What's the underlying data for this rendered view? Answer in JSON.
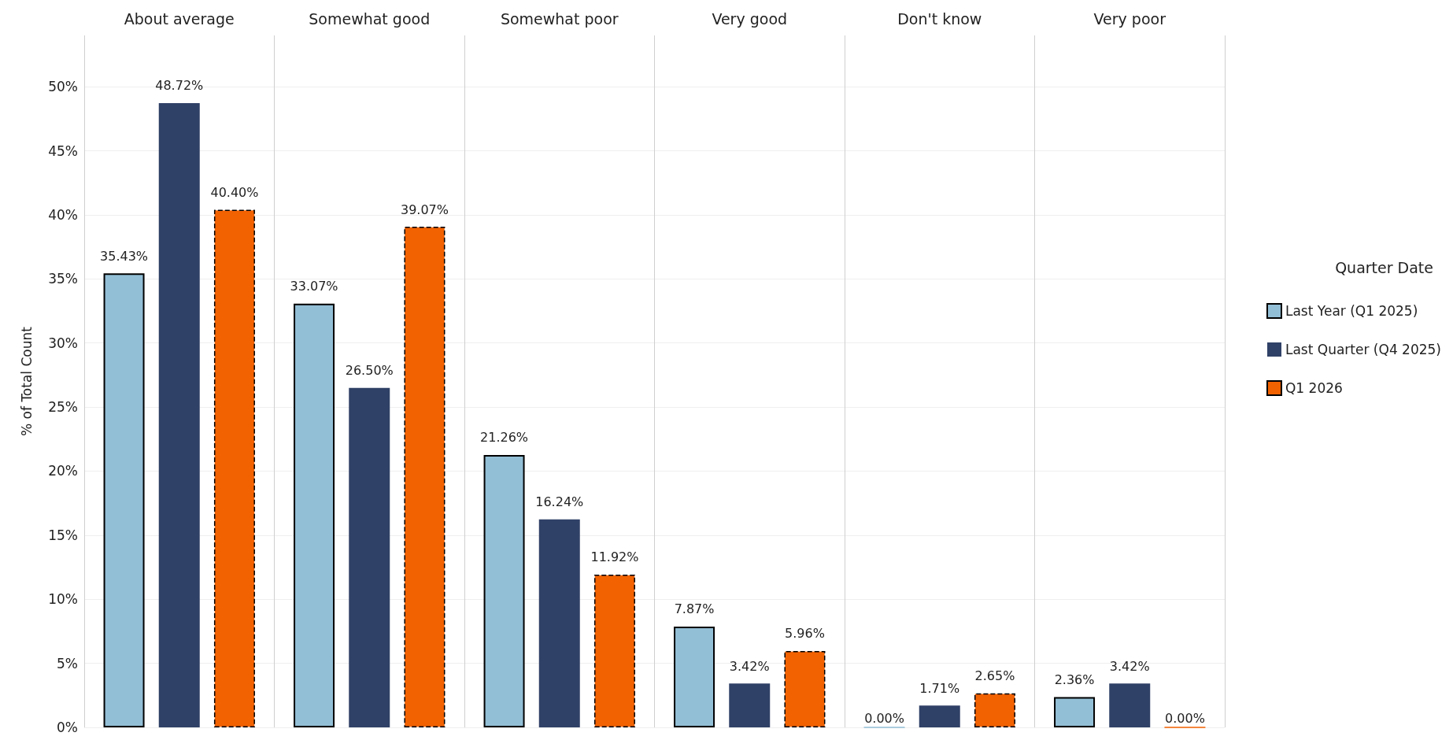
{
  "chart_data": {
    "type": "bar",
    "ylabel": "% of Total Count",
    "legend_title": "Quarter Date",
    "categories": [
      "About average",
      "Somewhat good",
      "Somewhat poor",
      "Very good",
      "Don't know",
      "Very poor"
    ],
    "series": [
      {
        "name": "Last Year (Q1 2025)",
        "color": "#93bfd6",
        "values": [
          35.43,
          33.07,
          21.26,
          7.87,
          0.0,
          2.36
        ],
        "value_labels": [
          "35.43%",
          "33.07%",
          "21.26%",
          "7.87%",
          "0.00%",
          "2.36%"
        ]
      },
      {
        "name": "Last Quarter (Q4 2025)",
        "color": "#304167",
        "values": [
          48.72,
          26.5,
          16.24,
          3.42,
          1.71,
          3.42
        ],
        "value_labels": [
          "48.72%",
          "26.50%",
          "16.24%",
          "3.42%",
          "1.71%",
          "3.42%"
        ]
      },
      {
        "name": "Q1 2026",
        "color": "#f26200",
        "values": [
          40.4,
          39.07,
          11.92,
          5.96,
          2.65,
          0.0
        ],
        "value_labels": [
          "40.40%",
          "39.07%",
          "11.92%",
          "5.96%",
          "2.65%",
          "0.00%"
        ]
      }
    ],
    "ylim": [
      0,
      54
    ],
    "yticks": [
      {
        "value": 0,
        "label": "0%"
      },
      {
        "value": 5,
        "label": "5%"
      },
      {
        "value": 10,
        "label": "10%"
      },
      {
        "value": 15,
        "label": "15%"
      },
      {
        "value": 20,
        "label": "20%"
      },
      {
        "value": 25,
        "label": "25%"
      },
      {
        "value": 30,
        "label": "30%"
      },
      {
        "value": 35,
        "label": "35%"
      },
      {
        "value": 40,
        "label": "40%"
      },
      {
        "value": 45,
        "label": "45%"
      },
      {
        "value": 50,
        "label": "50%"
      }
    ],
    "grid": "y",
    "legend": "right"
  }
}
